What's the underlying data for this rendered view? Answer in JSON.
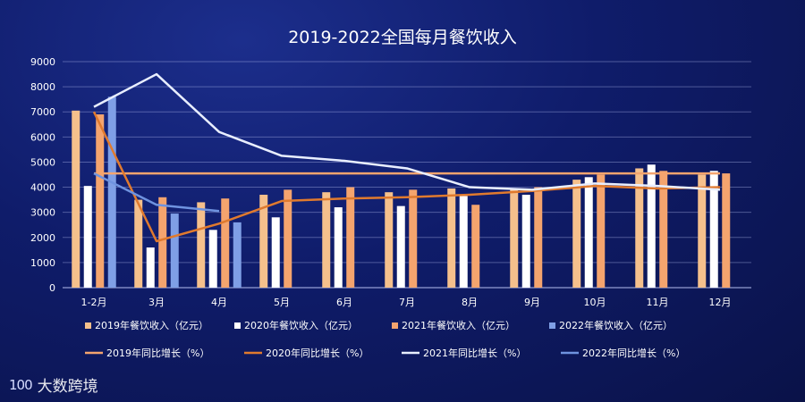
{
  "colors": {
    "s2019_bar": "#f5c08c",
    "s2020_bar": "#ffffff",
    "s2021_bar": "#f4a46e",
    "s2022_bar": "#7f9fe6",
    "s2019_line": "#f4a46e",
    "s2020_line": "#e07a2e",
    "s2021_line": "#e8eeff",
    "s2022_line": "#6f93e0",
    "grid": "#c8d0ff"
  },
  "brand": {
    "mark": "100",
    "name": "大数跨境"
  },
  "chart_data": {
    "type": "bar",
    "title": "2019-2022全国每月餐饮收入",
    "categories": [
      "1-2月",
      "3月",
      "4月",
      "5月",
      "6月",
      "7月",
      "8月",
      "9月",
      "10月",
      "11月",
      "12月"
    ],
    "ylim": [
      0,
      9000
    ],
    "yticks": [
      "0",
      "1000",
      "2000",
      "3000",
      "4000",
      "5000",
      "6000",
      "7000",
      "8000",
      "9000"
    ],
    "grid": "horizontal",
    "legend_position": "bottom",
    "series": [
      {
        "name": "2019年餐饮收入（亿元）",
        "kind": "bar",
        "values": [
          7050,
          3500,
          3400,
          3700,
          3800,
          3800,
          3950,
          3900,
          4300,
          4750,
          4500
        ]
      },
      {
        "name": "2020年餐饮收入（亿元）",
        "kind": "bar",
        "values": [
          4050,
          1600,
          2300,
          2800,
          3200,
          3250,
          3650,
          3700,
          4400,
          4900,
          4650
        ]
      },
      {
        "name": "2021年餐饮收入（亿元）",
        "kind": "bar",
        "values": [
          6900,
          3600,
          3550,
          3900,
          4000,
          3900,
          3300,
          4000,
          4500,
          4650,
          4550
        ]
      },
      {
        "name": "2022年餐饮收入（亿元）",
        "kind": "bar",
        "values": [
          7600,
          2950,
          2600,
          null,
          null,
          null,
          null,
          null,
          null,
          null,
          null
        ]
      },
      {
        "name": "2019年同比增长（%）",
        "kind": "line",
        "values": [
          4550,
          4550,
          4550,
          4550,
          4550,
          4550,
          4550,
          4550,
          4550,
          4550,
          4550
        ]
      },
      {
        "name": "2020年同比增长（%）",
        "kind": "line",
        "values": [
          7000,
          1850,
          2550,
          3450,
          3550,
          3600,
          3700,
          3850,
          4050,
          3950,
          4000
        ]
      },
      {
        "name": "2021年同比增长（%）",
        "kind": "line",
        "values": [
          7200,
          8500,
          6200,
          5250,
          5050,
          4750,
          4000,
          3900,
          4150,
          4050,
          3900
        ]
      },
      {
        "name": "2022年同比增长（%）",
        "kind": "line",
        "values": [
          4550,
          3300,
          3050,
          null,
          null,
          null,
          null,
          null,
          null,
          null,
          null
        ]
      }
    ]
  }
}
